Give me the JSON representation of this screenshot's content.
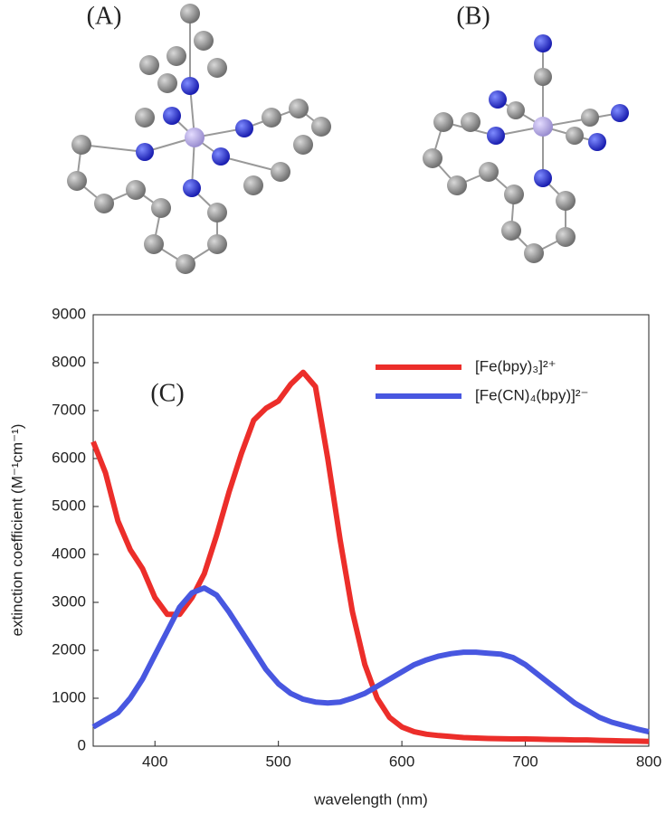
{
  "panel_labels": [
    "(A)",
    "(B)"
  ],
  "chart_data": {
    "type": "line",
    "annotation": "(C)",
    "x_label": "wavelength (nm)",
    "y_label": "extinction coefficient (M⁻¹cm⁻¹)",
    "x": [
      350,
      360,
      370,
      380,
      390,
      400,
      410,
      420,
      430,
      440,
      450,
      460,
      470,
      480,
      490,
      500,
      510,
      520,
      530,
      540,
      550,
      560,
      570,
      580,
      590,
      600,
      610,
      620,
      630,
      640,
      650,
      660,
      670,
      680,
      690,
      700,
      710,
      720,
      730,
      740,
      750,
      760,
      770,
      780,
      790,
      800
    ],
    "series": [
      {
        "name": "[Fe(bpy)₃]²⁺",
        "color": "#ec2e2a",
        "values": [
          6350,
          5700,
          4700,
          4100,
          3700,
          3100,
          2750,
          2750,
          3100,
          3600,
          4400,
          5300,
          6100,
          6800,
          7050,
          7200,
          7550,
          7800,
          7500,
          6000,
          4300,
          2800,
          1700,
          1000,
          600,
          400,
          300,
          250,
          220,
          200,
          180,
          170,
          160,
          155,
          150,
          150,
          145,
          140,
          135,
          130,
          130,
          120,
          115,
          110,
          105,
          100
        ]
      },
      {
        "name": "[Fe(CN)₄(bpy)]²⁻",
        "color": "#4857e0",
        "values": [
          400,
          550,
          700,
          1000,
          1400,
          1900,
          2400,
          2900,
          3200,
          3300,
          3150,
          2800,
          2400,
          2000,
          1600,
          1300,
          1100,
          980,
          920,
          900,
          920,
          1000,
          1100,
          1250,
          1400,
          1550,
          1700,
          1800,
          1880,
          1930,
          1960,
          1960,
          1940,
          1920,
          1850,
          1700,
          1500,
          1300,
          1100,
          900,
          750,
          600,
          500,
          430,
          360,
          300
        ]
      }
    ],
    "xlim": [
      350,
      800
    ],
    "xticks": [
      400,
      500,
      600,
      700,
      800
    ],
    "ylim": [
      0,
      9000
    ],
    "yticks": [
      0,
      1000,
      2000,
      3000,
      4000,
      5000,
      6000,
      7000,
      8000,
      9000
    ],
    "legend": "upper right"
  }
}
